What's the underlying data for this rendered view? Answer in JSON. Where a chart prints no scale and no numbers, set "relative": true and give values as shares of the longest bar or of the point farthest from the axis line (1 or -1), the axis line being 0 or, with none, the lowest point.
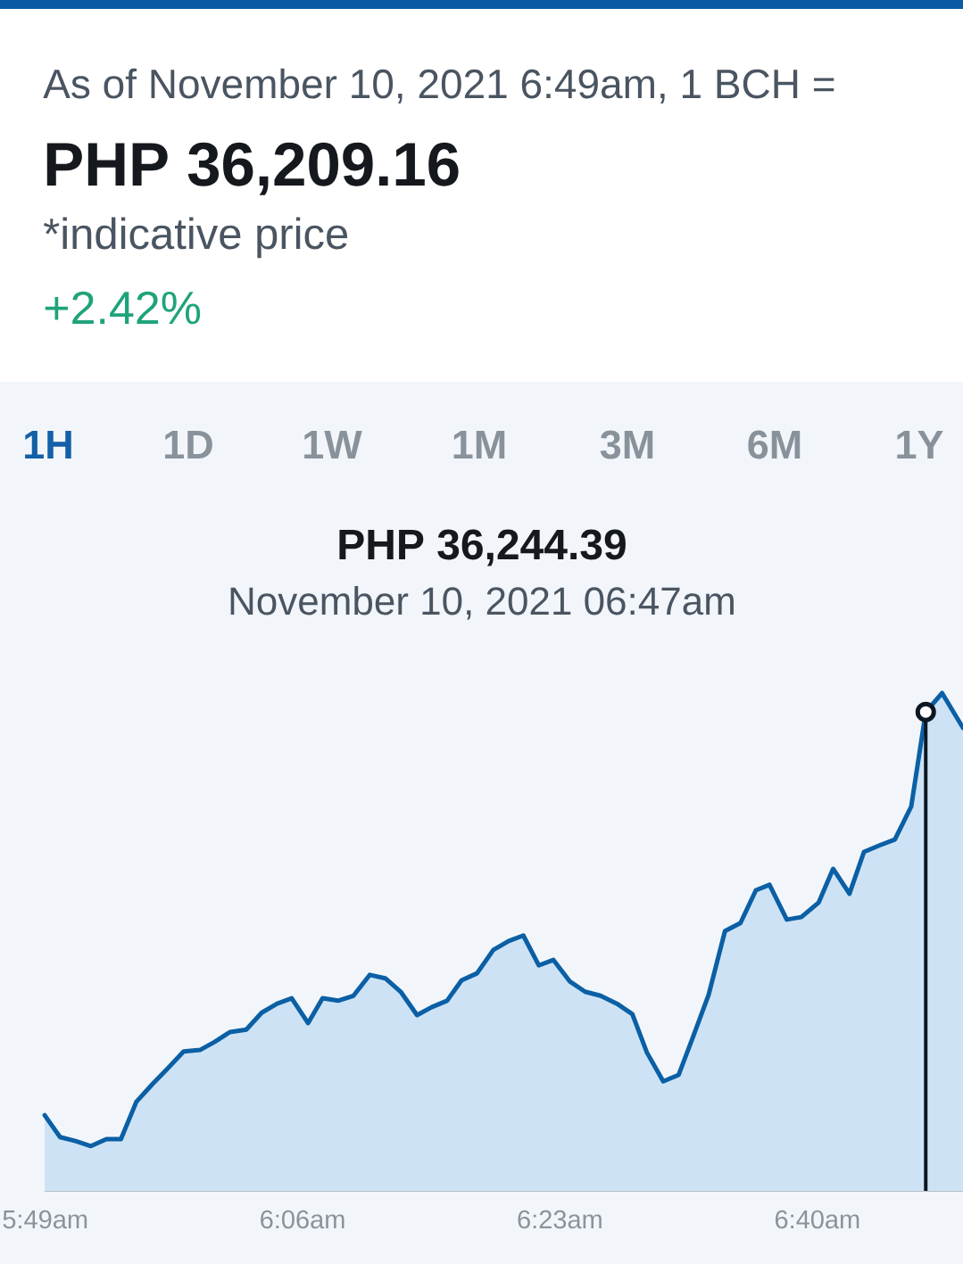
{
  "chart_data": {
    "type": "area",
    "title": "As of November 10, 2021 6:49am, 1 BCH =",
    "subtitle": "PHP 36,209.16",
    "annotations": [
      "*indicative price",
      "+2.42%",
      "1H",
      "1D",
      "1W",
      "1M",
      "3M",
      "6M",
      "1Y",
      "PHP 36,244.39",
      "November 10, 2021 06:47am"
    ],
    "relative": true,
    "color": "#0b5fa5",
    "x": [
      5.816,
      5.833,
      5.85,
      5.867,
      5.884,
      5.9,
      5.917,
      5.935,
      5.952,
      5.969,
      5.987,
      6.003,
      6.02,
      6.038,
      6.055,
      6.072,
      6.088,
      6.106,
      6.122,
      6.139,
      6.156,
      6.174,
      6.191,
      6.208,
      6.226,
      6.242,
      6.259,
      6.275,
      6.292,
      6.31,
      6.327,
      6.343,
      6.36,
      6.376,
      6.394,
      6.411,
      6.428,
      6.446,
      6.463,
      6.479,
      6.497,
      6.514,
      6.531,
      6.547,
      6.565,
      6.582,
      6.599,
      6.614,
      6.633,
      6.649,
      6.668,
      6.684,
      6.702,
      6.718,
      6.735,
      6.752,
      6.77,
      6.786,
      6.804,
      6.827
    ],
    "values": [
      0.152,
      0.108,
      0.1,
      0.09,
      0.104,
      0.104,
      0.179,
      0.215,
      0.247,
      0.28,
      0.283,
      0.299,
      0.319,
      0.324,
      0.358,
      0.376,
      0.387,
      0.337,
      0.387,
      0.382,
      0.392,
      0.434,
      0.427,
      0.4,
      0.353,
      0.369,
      0.382,
      0.423,
      0.437,
      0.484,
      0.502,
      0.513,
      0.453,
      0.464,
      0.421,
      0.4,
      0.392,
      0.376,
      0.355,
      0.278,
      0.22,
      0.233,
      0.315,
      0.394,
      0.522,
      0.538,
      0.604,
      0.615,
      0.545,
      0.55,
      0.579,
      0.647,
      0.597,
      0.681,
      0.694,
      0.706,
      0.772,
      0.962,
      1.0,
      0.93
    ],
    "xlim": [
      5.816,
      6.827
    ],
    "xticks": [
      {
        "value": 5.8167,
        "label": "5:49am"
      },
      {
        "value": 6.1,
        "label": "6:06am"
      },
      {
        "value": 6.3833,
        "label": "6:23am"
      },
      {
        "value": 6.6667,
        "label": "6:40am"
      }
    ],
    "ref_lines": [
      {
        "axis": "x",
        "value": 6.786,
        "color": "#0c1722"
      }
    ]
  }
}
